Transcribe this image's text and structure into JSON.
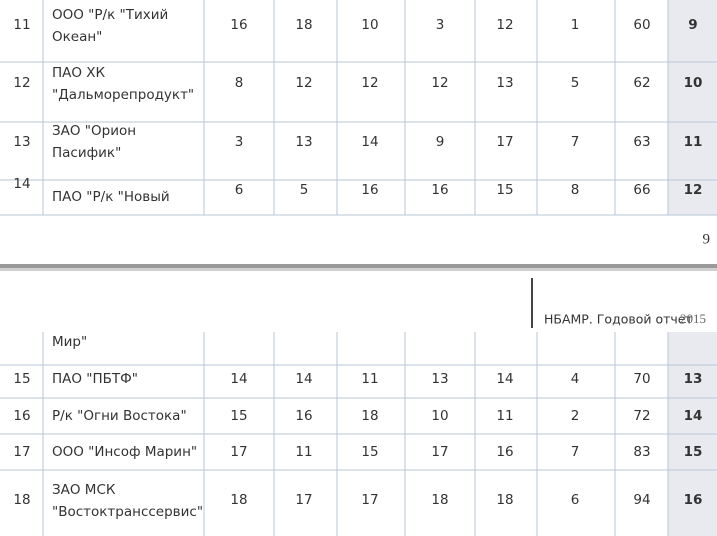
{
  "page_top": {
    "rows": [
      {
        "no": 11,
        "name": [
          "ООО \"Р/к \"Тихий",
          "Океан\""
        ],
        "values": [
          16,
          18,
          10,
          3,
          12,
          1,
          60
        ],
        "rank": 9
      },
      {
        "no": 12,
        "name": [
          "ПАО ХК",
          "\"Дальморепродукт\""
        ],
        "values": [
          8,
          12,
          12,
          12,
          13,
          5,
          62
        ],
        "rank": 10
      },
      {
        "no": 13,
        "name": [
          "ЗАО \"Орион",
          "Пасифик\""
        ],
        "values": [
          3,
          13,
          14,
          9,
          17,
          7,
          63
        ],
        "rank": 11
      },
      {
        "no": 14,
        "name": [
          "ПАО \"Р/к \"Новый"
        ],
        "values": [
          6,
          5,
          16,
          16,
          15,
          8,
          66
        ],
        "rank": 12
      }
    ]
  },
  "page_number": 9,
  "running_header": {
    "title": "НБАМР. Годовой отчет",
    "year": "2015"
  },
  "page_bottom": {
    "continuation": [
      "Мир\""
    ],
    "rows": [
      {
        "no": 15,
        "name": [
          "ПАО \"ПБТФ\""
        ],
        "values": [
          14,
          14,
          11,
          13,
          14,
          4,
          70
        ],
        "rank": 13
      },
      {
        "no": 16,
        "name": [
          "Р/к \"Огни Востока\""
        ],
        "values": [
          15,
          16,
          18,
          10,
          11,
          2,
          72
        ],
        "rank": 14
      },
      {
        "no": 17,
        "name": [
          "ООО \"Инсоф Марин\""
        ],
        "values": [
          17,
          11,
          15,
          17,
          16,
          7,
          83
        ],
        "rank": 15
      },
      {
        "no": 18,
        "name": [
          "ЗАО МСК",
          "\"Востоктранссервис\""
        ],
        "values": [
          18,
          17,
          17,
          18,
          18,
          6,
          94
        ],
        "rank": 16
      }
    ]
  }
}
